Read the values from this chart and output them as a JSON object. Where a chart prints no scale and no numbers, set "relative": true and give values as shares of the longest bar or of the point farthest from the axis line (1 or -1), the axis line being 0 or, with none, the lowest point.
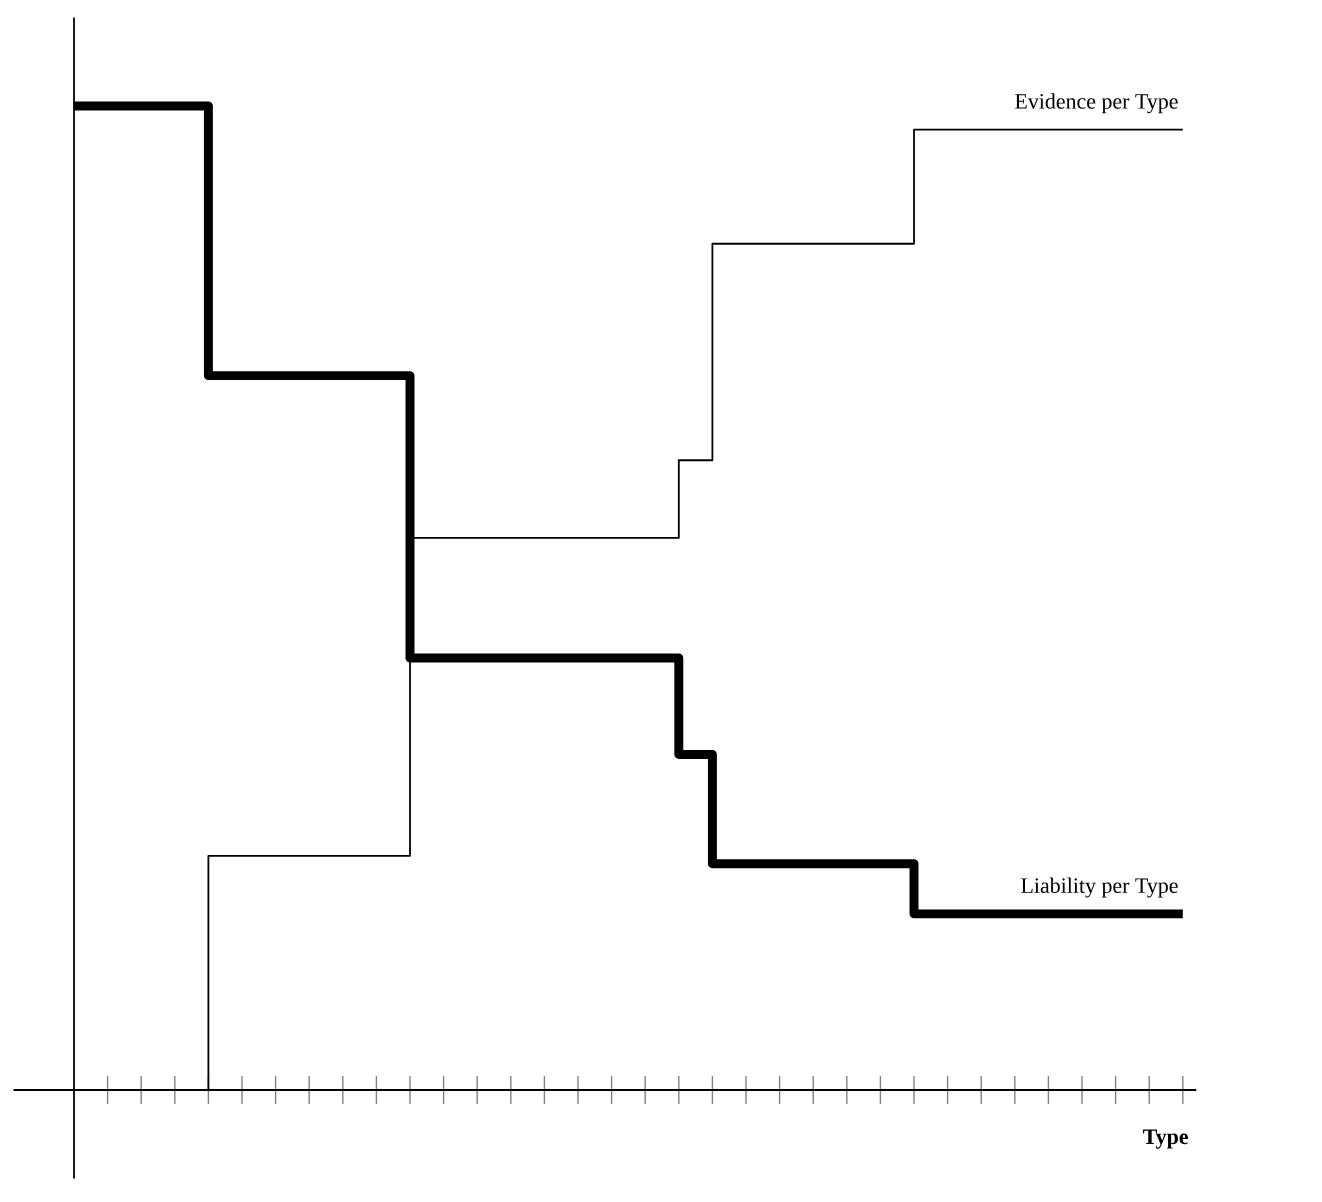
{
  "chart_data": {
    "type": "step",
    "relative": true,
    "xlabel": "Type",
    "tick_labels": false,
    "categories": [
      null,
      null,
      null,
      null,
      null,
      null,
      null,
      null,
      null,
      null,
      null,
      null,
      null,
      null,
      null,
      null,
      null,
      null,
      null,
      null,
      null,
      null,
      null,
      null,
      null,
      null,
      null,
      null,
      null,
      null,
      null,
      null,
      null,
      null
    ],
    "series": [
      {
        "name": "Evidence per Type",
        "color": "#000000",
        "values": [
          0,
          0,
          0,
          0,
          0.238,
          0.238,
          0.238,
          0.238,
          0.238,
          0.238,
          0.561,
          0.561,
          0.561,
          0.561,
          0.561,
          0.561,
          0.561,
          0.561,
          0.64,
          0.86,
          0.86,
          0.86,
          0.86,
          0.86,
          0.86,
          0.976,
          0.976,
          0.976,
          0.976,
          0.976,
          0.976,
          0.976,
          0.976,
          0.976
        ]
      },
      {
        "name": "Liability per Type",
        "color": "#000000",
        "values": [
          1,
          1,
          1,
          1,
          0.726,
          0.726,
          0.726,
          0.726,
          0.726,
          0.726,
          0.439,
          0.439,
          0.439,
          0.439,
          0.439,
          0.439,
          0.439,
          0.439,
          0.341,
          0.23,
          0.23,
          0.23,
          0.23,
          0.23,
          0.23,
          0.179,
          0.179,
          0.179,
          0.179,
          0.179,
          0.179,
          0.179,
          0.179,
          0.179
        ]
      }
    ]
  }
}
